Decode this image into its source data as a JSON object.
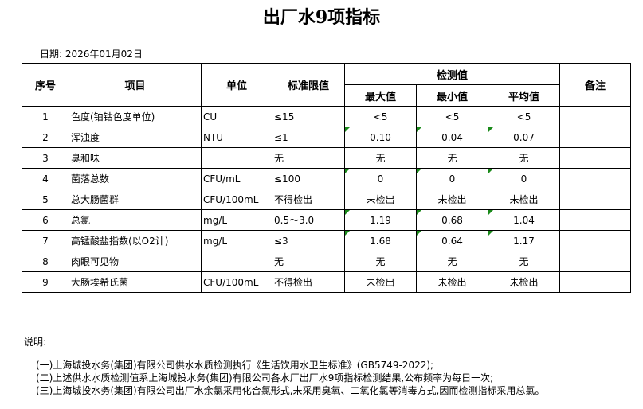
{
  "title": "出厂水9项指标",
  "date": "日期: 2026年01月02日",
  "headers": {
    "seq": "序号",
    "item": "项目",
    "unit": "单位",
    "limit": "标准限值",
    "measured": "检测值",
    "max": "最大值",
    "min": "最小值",
    "avg": "平均值",
    "remark": "备注"
  },
  "rows": [
    {
      "seq": "1",
      "item": "色度(铂钴色度单位)",
      "unit": "CU",
      "limit": "≤15",
      "max": "<5",
      "min": "<5",
      "avg": "<5",
      "remark": "",
      "flag": false
    },
    {
      "seq": "2",
      "item": "浑浊度",
      "unit": "NTU",
      "limit": "≤1",
      "max": "0.10",
      "min": "0.04",
      "avg": "0.07",
      "remark": "",
      "flag": true
    },
    {
      "seq": "3",
      "item": "臭和味",
      "unit": "",
      "limit": "无",
      "max": "无",
      "min": "无",
      "avg": "无",
      "remark": "",
      "flag": false
    },
    {
      "seq": "4",
      "item": "菌落总数",
      "unit": "CFU/mL",
      "limit": "≤100",
      "max": "0",
      "min": "0",
      "avg": "0",
      "remark": "",
      "flag": true
    },
    {
      "seq": "5",
      "item": "总大肠菌群",
      "unit": "CFU/100mL",
      "limit": "不得检出",
      "max": "未检出",
      "min": "未检出",
      "avg": "未检出",
      "remark": "",
      "flag": false
    },
    {
      "seq": "6",
      "item": "总氯",
      "unit": "mg/L",
      "limit": "0.5～3.0",
      "max": "1.19",
      "min": "0.68",
      "avg": "1.04",
      "remark": "",
      "flag": true
    },
    {
      "seq": "7",
      "item": "高锰酸盐指数(以O2计)",
      "unit": "mg/L",
      "limit": "≤3",
      "max": "1.68",
      "min": "0.64",
      "avg": "1.17",
      "remark": "",
      "flag": true
    },
    {
      "seq": "8",
      "item": "肉眼可见物",
      "unit": "",
      "limit": "无",
      "max": "无",
      "min": "无",
      "avg": "无",
      "remark": "",
      "flag": false
    },
    {
      "seq": "9",
      "item": "大肠埃希氏菌",
      "unit": "CFU/100mL",
      "limit": "不得检出",
      "max": "未检出",
      "min": "未检出",
      "avg": "未检出",
      "remark": "",
      "flag": false
    }
  ],
  "notes_label": "说明:",
  "notes": [
    "(一)上海城投水务(集团)有限公司供水水质检测执行《生活饮用水卫生标准》(GB5749-2022);",
    "(二)上述供水水质检测值系上海城投水务(集团)有限公司各水厂出厂水9项指标检测结果,公布频率为每日一次;",
    "(三)上海城投水务(集团)有限公司出厂水余氯采用化合氯形式,未采用臭氧、二氧化氯等消毒方式,因而检测指标采用总氯。"
  ],
  "colors": {
    "error_indicator": "#1a8a1a"
  }
}
